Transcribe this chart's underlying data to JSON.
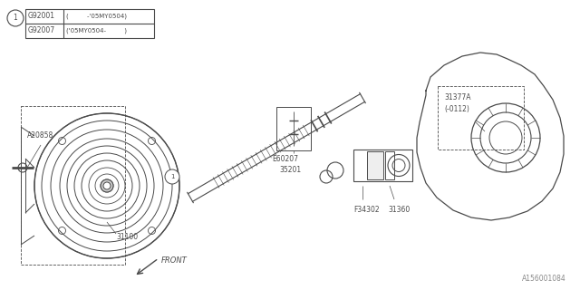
{
  "bg_color": "#ffffff",
  "line_color": "#4a4a4a",
  "fig_id": "A156001084",
  "legend_row1_code": "G92001",
  "legend_row1_desc": "(         -'05MY0504)",
  "legend_row2_code": "G92007",
  "legend_row2_desc": "('05MY0504-         )"
}
